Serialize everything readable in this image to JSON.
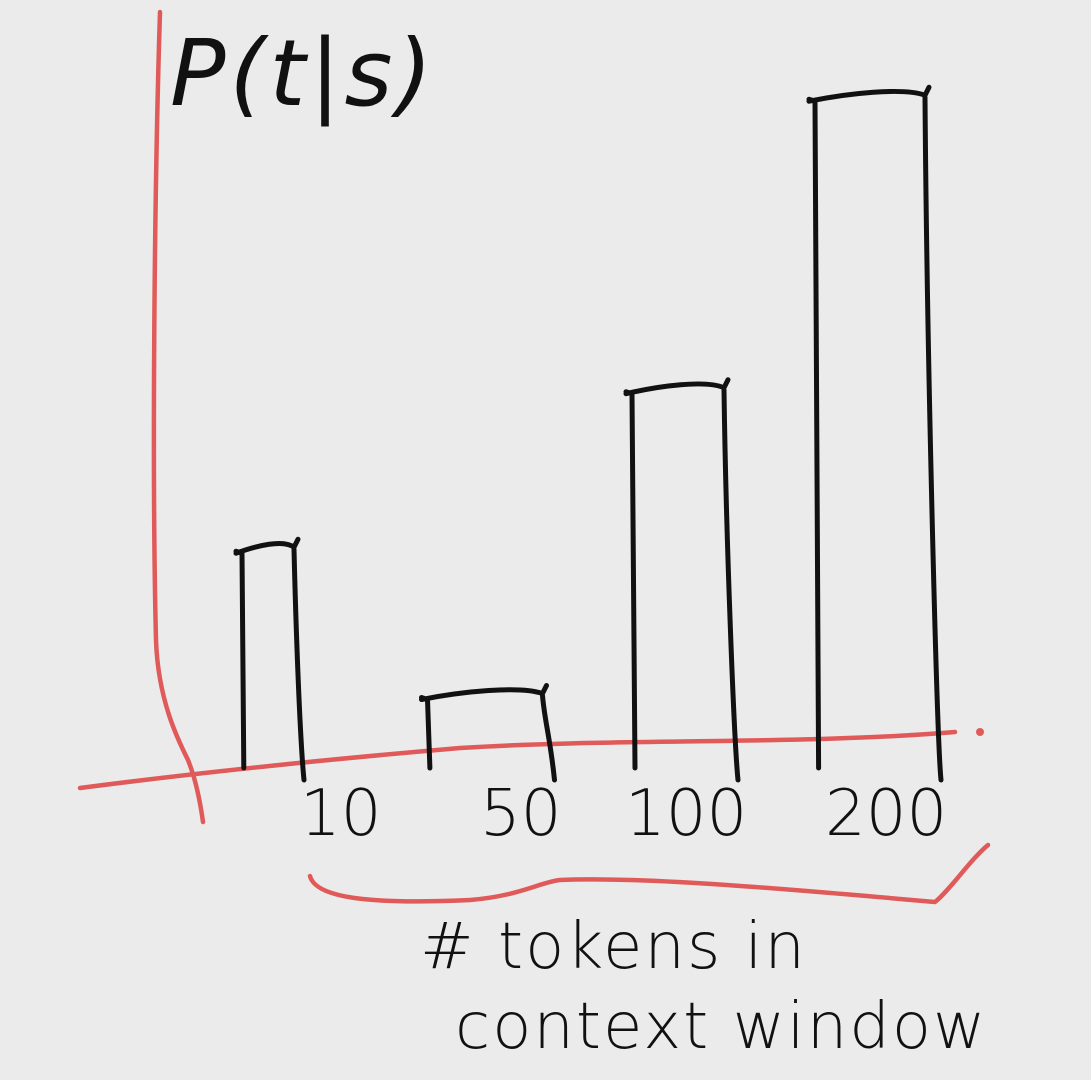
{
  "chart_data": {
    "type": "bar",
    "ylabel": "P(t|s)",
    "xlabel": "# tokens in context window",
    "categories": [
      "10",
      "50",
      "100",
      "200"
    ],
    "values": [
      0.32,
      0.1,
      0.56,
      1.0
    ],
    "ylim": [
      0,
      1.05
    ],
    "grid": false,
    "legend": "none",
    "colors": {
      "ink": "#111111",
      "axis": "#e05a5a",
      "background": "#ebebeb"
    }
  }
}
